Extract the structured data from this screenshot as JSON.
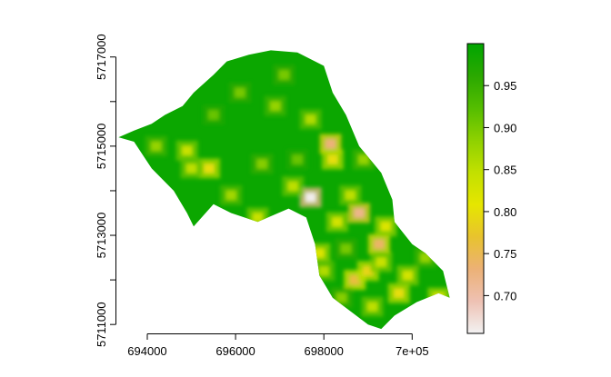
{
  "x_axis": {
    "ticks": [
      {
        "value": 694000,
        "label": "694000"
      },
      {
        "value": 696000,
        "label": "696000"
      },
      {
        "value": 698000,
        "label": "698000"
      },
      {
        "value": 700000,
        "label": "7e+05"
      }
    ],
    "range": [
      693300,
      700900
    ]
  },
  "y_axis": {
    "ticks": [
      {
        "value": 5711000,
        "label": "5711000"
      },
      {
        "value": 5713000,
        "label": "5713000"
      },
      {
        "value": 5715000,
        "label": "5715000"
      },
      {
        "value": 5717000,
        "label": "5717000"
      }
    ],
    "minor_ticks": [
      5712000,
      5714000,
      5716000
    ],
    "range": [
      5710800,
      5717300
    ]
  },
  "legend": {
    "range": [
      0.655,
      1.0
    ],
    "ticks": [
      {
        "value": 0.7,
        "label": "0.70"
      },
      {
        "value": 0.75,
        "label": "0.75"
      },
      {
        "value": 0.8,
        "label": "0.80"
      },
      {
        "value": 0.85,
        "label": "0.85"
      },
      {
        "value": 0.9,
        "label": "0.90"
      },
      {
        "value": 0.95,
        "label": "0.95"
      }
    ],
    "palette": [
      "#f2f2f2",
      "#eec1b3",
      "#ecb176",
      "#e8c32e",
      "#e6e600",
      "#c2e000",
      "#8ed100",
      "#54bd00",
      "#2aa800",
      "#00a600"
    ]
  },
  "raster": {
    "background_value": 0.99,
    "boundary": [
      [
        693350,
        5715200
      ],
      [
        693700,
        5715100
      ],
      [
        694100,
        5714500
      ],
      [
        694600,
        5714000
      ],
      [
        694900,
        5713500
      ],
      [
        695050,
        5713200
      ],
      [
        695500,
        5713700
      ],
      [
        695900,
        5713500
      ],
      [
        696500,
        5713300
      ],
      [
        697200,
        5713600
      ],
      [
        697600,
        5713400
      ],
      [
        697800,
        5712800
      ],
      [
        697900,
        5712100
      ],
      [
        698200,
        5711600
      ],
      [
        698600,
        5711300
      ],
      [
        699000,
        5711000
      ],
      [
        699300,
        5710900
      ],
      [
        699600,
        5711200
      ],
      [
        700100,
        5711500
      ],
      [
        700600,
        5711700
      ],
      [
        700850,
        5711600
      ],
      [
        700700,
        5712200
      ],
      [
        700300,
        5712600
      ],
      [
        700000,
        5712800
      ],
      [
        699600,
        5713300
      ],
      [
        699550,
        5713800
      ],
      [
        699300,
        5714400
      ],
      [
        698800,
        5715000
      ],
      [
        698500,
        5715700
      ],
      [
        698200,
        5716200
      ],
      [
        698000,
        5716800
      ],
      [
        697400,
        5717100
      ],
      [
        696800,
        5717150
      ],
      [
        696300,
        5717050
      ],
      [
        695800,
        5716900
      ],
      [
        695500,
        5716600
      ],
      [
        695050,
        5716200
      ],
      [
        694800,
        5715900
      ],
      [
        694400,
        5715700
      ],
      [
        694100,
        5715500
      ],
      [
        693700,
        5715350
      ]
    ],
    "cells": [
      {
        "x": 697700,
        "y": 5713850,
        "v": 0.66
      },
      {
        "x": 698800,
        "y": 5713500,
        "v": 0.72
      },
      {
        "x": 698150,
        "y": 5715050,
        "v": 0.73
      },
      {
        "x": 699250,
        "y": 5712800,
        "v": 0.74
      },
      {
        "x": 698700,
        "y": 5712000,
        "v": 0.76
      },
      {
        "x": 695400,
        "y": 5714500,
        "v": 0.8
      },
      {
        "x": 698200,
        "y": 5714700,
        "v": 0.8
      },
      {
        "x": 699000,
        "y": 5712200,
        "v": 0.79
      },
      {
        "x": 699700,
        "y": 5711700,
        "v": 0.8
      },
      {
        "x": 697900,
        "y": 5712600,
        "v": 0.82
      },
      {
        "x": 698300,
        "y": 5713300,
        "v": 0.83
      },
      {
        "x": 699400,
        "y": 5713200,
        "v": 0.82
      },
      {
        "x": 700600,
        "y": 5711600,
        "v": 0.81
      },
      {
        "x": 694900,
        "y": 5714900,
        "v": 0.84
      },
      {
        "x": 695000,
        "y": 5714500,
        "v": 0.85
      },
      {
        "x": 696500,
        "y": 5713400,
        "v": 0.84
      },
      {
        "x": 697300,
        "y": 5714100,
        "v": 0.85
      },
      {
        "x": 697700,
        "y": 5715600,
        "v": 0.86
      },
      {
        "x": 698600,
        "y": 5713900,
        "v": 0.85
      },
      {
        "x": 699300,
        "y": 5712400,
        "v": 0.84
      },
      {
        "x": 699900,
        "y": 5712100,
        "v": 0.83
      },
      {
        "x": 699100,
        "y": 5711400,
        "v": 0.85
      },
      {
        "x": 698000,
        "y": 5712200,
        "v": 0.86
      },
      {
        "x": 696900,
        "y": 5715900,
        "v": 0.88
      },
      {
        "x": 695900,
        "y": 5713900,
        "v": 0.87
      },
      {
        "x": 694200,
        "y": 5715000,
        "v": 0.88
      },
      {
        "x": 696100,
        "y": 5716200,
        "v": 0.9
      },
      {
        "x": 697100,
        "y": 5716600,
        "v": 0.9
      },
      {
        "x": 696600,
        "y": 5714600,
        "v": 0.89
      },
      {
        "x": 698900,
        "y": 5714700,
        "v": 0.88
      },
      {
        "x": 698400,
        "y": 5711600,
        "v": 0.89
      },
      {
        "x": 700300,
        "y": 5712500,
        "v": 0.88
      },
      {
        "x": 695500,
        "y": 5715700,
        "v": 0.91
      },
      {
        "x": 697400,
        "y": 5714700,
        "v": 0.91
      },
      {
        "x": 698500,
        "y": 5712700,
        "v": 0.9
      }
    ]
  }
}
